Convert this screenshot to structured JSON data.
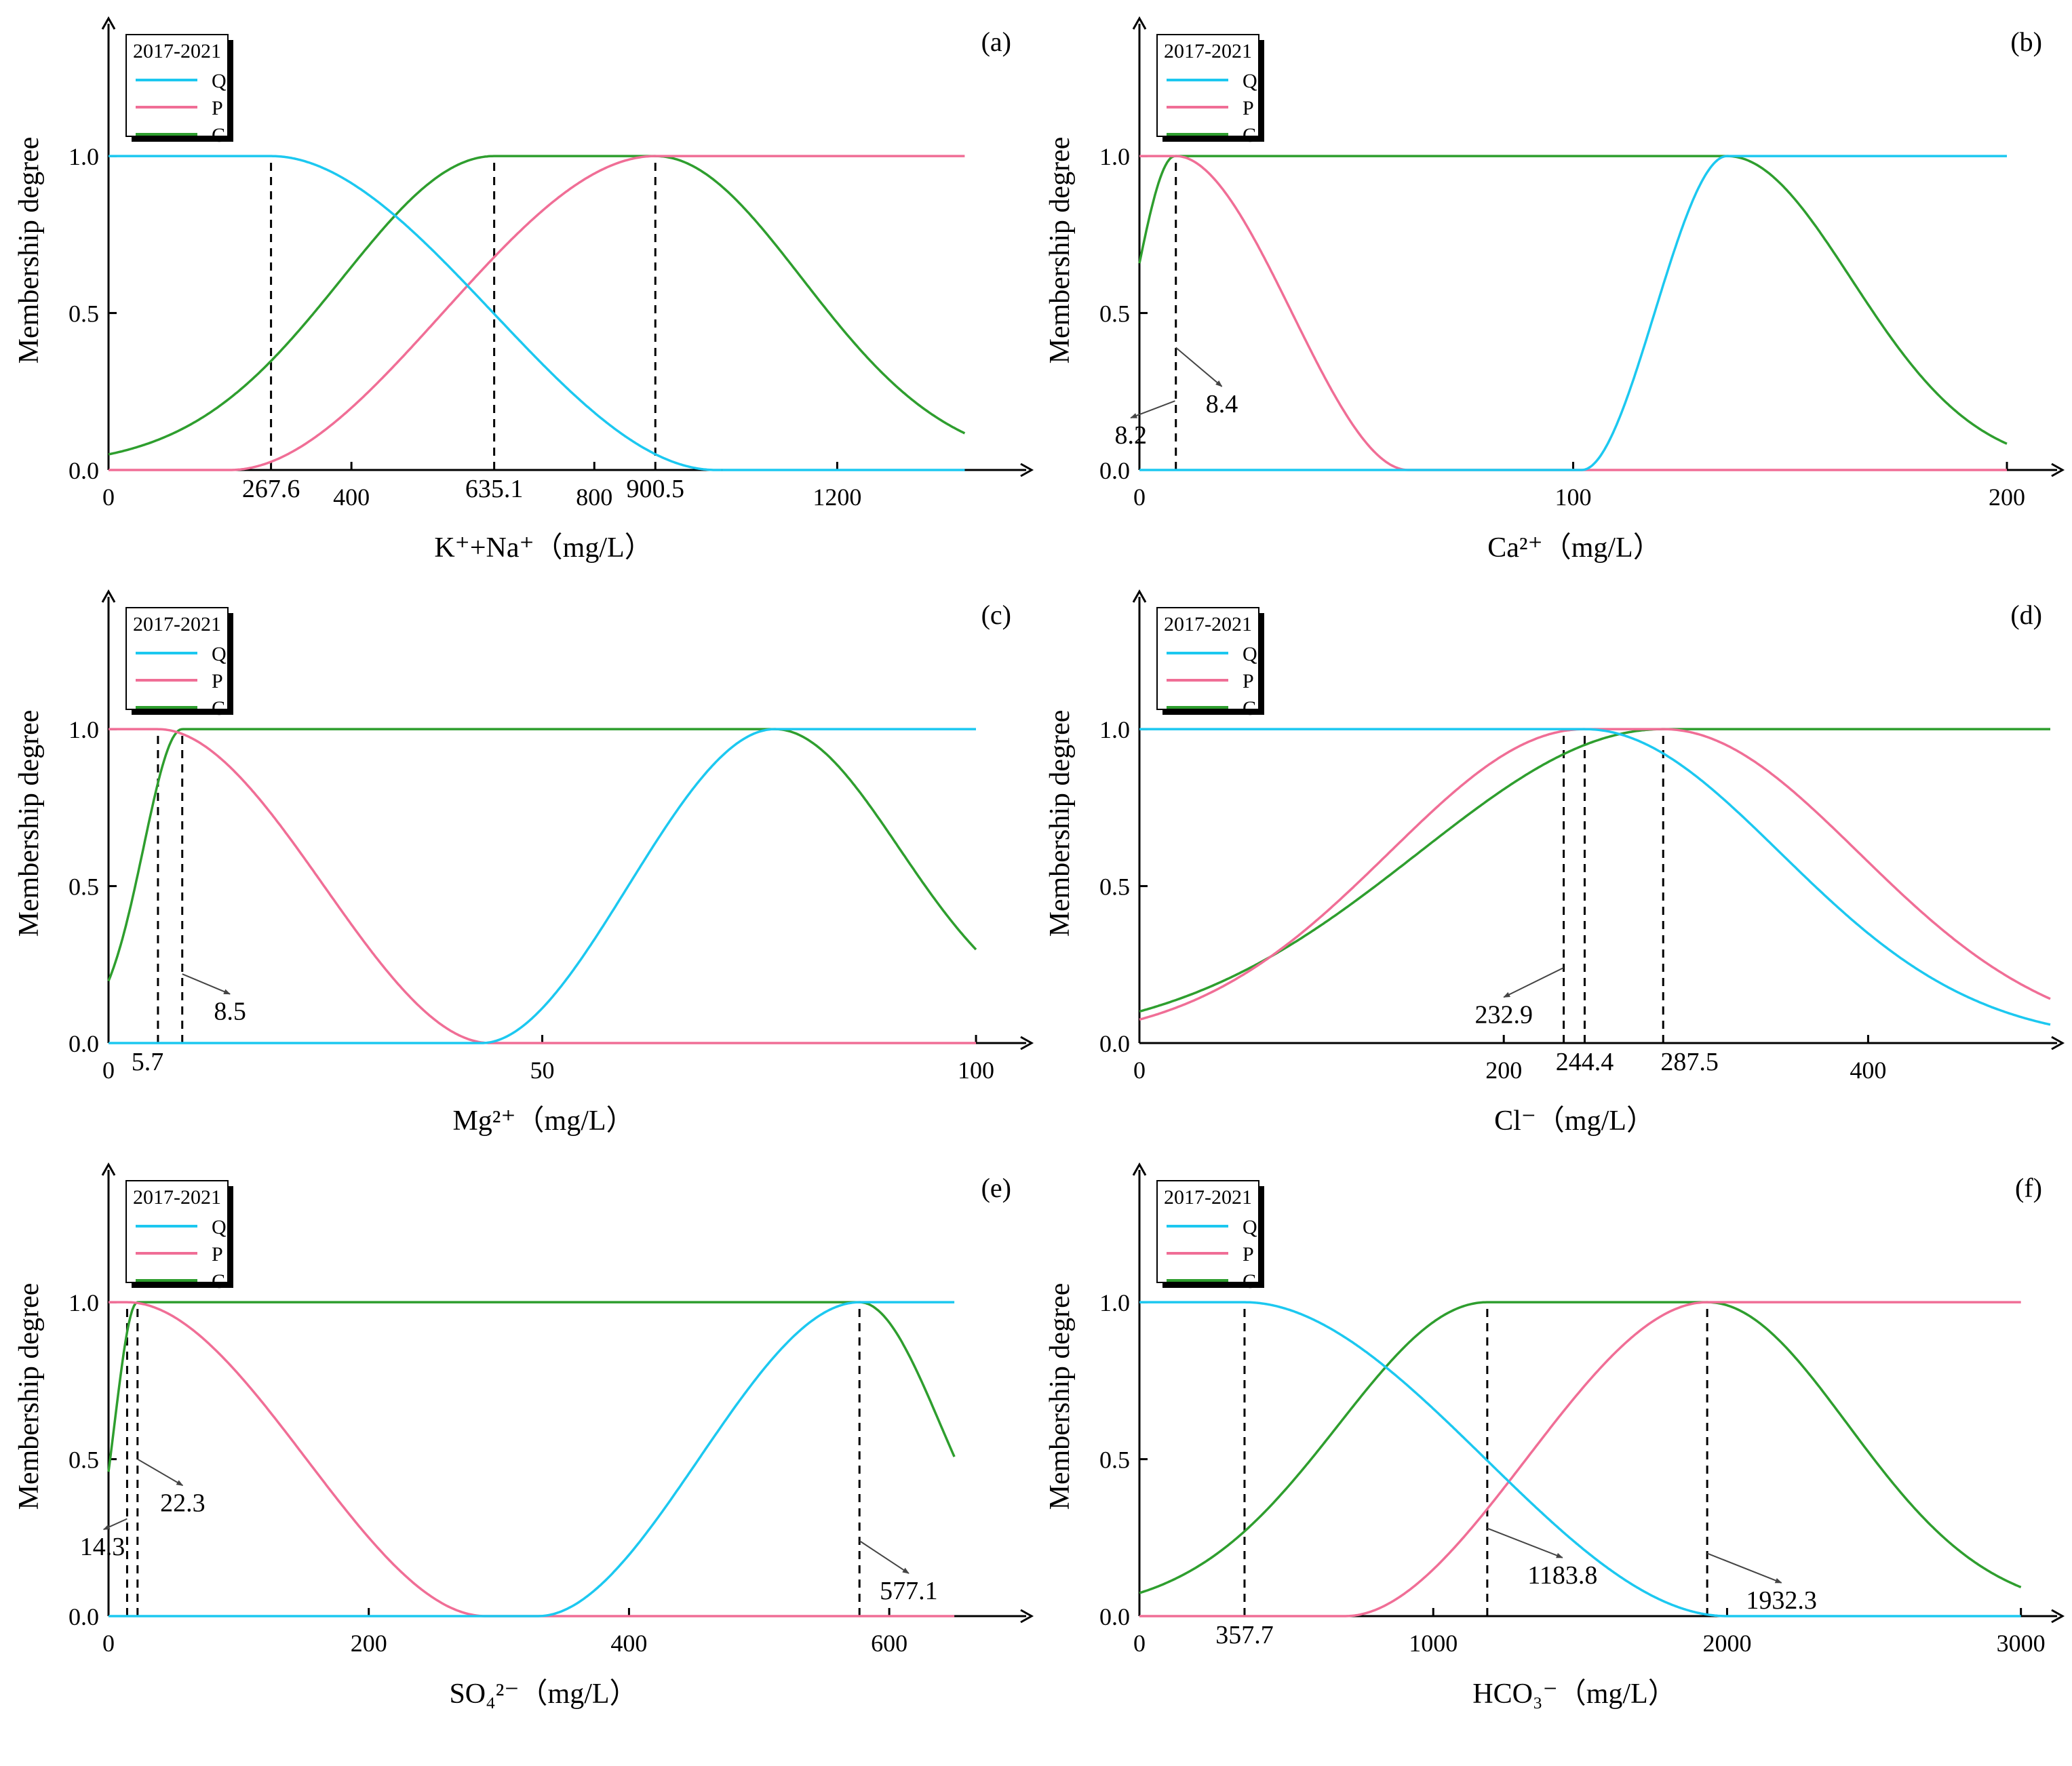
{
  "figure": {
    "legend_title": "2017-2021",
    "series_names": [
      "Q",
      "P",
      "C"
    ],
    "colors": {
      "Q": "#1CC8F0",
      "P": "#F06E96",
      "C": "#2E9E2E"
    },
    "y_label": "Membership degree",
    "y_ticks": [
      0,
      0.5,
      1
    ],
    "y_tick_labels": [
      "0.0",
      "0.5",
      "1.0"
    ]
  },
  "chart_data": [
    {
      "panel": "(a)",
      "type": "line",
      "xlabel": "K⁺+Na⁺（mg/L）",
      "xlim": [
        0,
        1500
      ],
      "ylim": [
        0,
        1.4
      ],
      "xticks": [
        0,
        400,
        800,
        1200
      ],
      "xtick_labels": [
        "0",
        "400",
        "800",
        "1200"
      ],
      "xmax_data": 1410,
      "series": [
        {
          "name": "Q",
          "kind": "zdec",
          "a": 267.6,
          "b": 1000,
          "xmax": 1010
        },
        {
          "name": "P",
          "kind": "zinc",
          "a": 200,
          "b": 900.5,
          "xmax": 1410
        },
        {
          "name": "C",
          "kind": "plateau",
          "a": 635.1,
          "b": 900.5,
          "sl": 560,
          "sr": 540,
          "lvl": 0.01,
          "xmax": 1410
        }
      ],
      "refs": [
        267.6,
        635.1,
        900.5
      ],
      "value_labels": [
        {
          "text": "267.6",
          "x": 267.6,
          "y": -0.06,
          "ax": "middle"
        },
        {
          "text": "635.1",
          "x": 635.1,
          "y": -0.06,
          "ax": "middle"
        },
        {
          "text": "900.5",
          "x": 900.5,
          "y": -0.06,
          "ax": "middle"
        }
      ]
    },
    {
      "panel": "(b)",
      "type": "line",
      "xlabel": "Ca²⁺（mg/L）",
      "xlim": [
        0,
        210
      ],
      "ylim": [
        0,
        1.4
      ],
      "xticks": [
        0,
        100,
        200
      ],
      "xtick_labels": [
        "0",
        "100",
        "200"
      ],
      "xmax_data": 200,
      "series": [
        {
          "name": "Q",
          "kind": "zinc",
          "a": 102,
          "b": 135.5,
          "xmax": 200
        },
        {
          "name": "P",
          "kind": "zdec",
          "a": 8.4,
          "b": 62,
          "xmax": 200
        },
        {
          "name": "C",
          "kind": "plateau",
          "a": 8.2,
          "b": 135.5,
          "sl": 20,
          "sr": 64,
          "lvl": 0.005,
          "xmax": 200
        }
      ],
      "refs": [
        8.4
      ],
      "value_labels": [
        {
          "text": "8.4",
          "x": 19,
          "y": 0.21,
          "ax": "middle",
          "arrow": [
            8.4,
            0.39
          ]
        },
        {
          "text": "8.2",
          "x": -2,
          "y": 0.11,
          "ax": "middle",
          "arrow": [
            8.2,
            0.22
          ]
        }
      ]
    },
    {
      "panel": "(c)",
      "type": "line",
      "xlabel": "Mg²⁺（mg/L）",
      "xlim": [
        0,
        105
      ],
      "ylim": [
        0,
        1.4
      ],
      "xticks": [
        0,
        50,
        100
      ],
      "xtick_labels": [
        "0",
        "50",
        "100"
      ],
      "xmax_data": 100,
      "series": [
        {
          "name": "Q",
          "kind": "zinc",
          "a": 43,
          "b": 76.8,
          "xmax": 100
        },
        {
          "name": "P",
          "kind": "zdec",
          "a": 5.7,
          "b": 44,
          "xmax": 100
        },
        {
          "name": "C",
          "kind": "plateau",
          "a": 8.5,
          "b": 76.8,
          "sl": 10,
          "sr": 32,
          "lvl": 0.04,
          "xmax": 100
        }
      ],
      "refs": [
        5.7,
        8.5
      ],
      "value_labels": [
        {
          "text": "8.5",
          "x": 14,
          "y": 0.1,
          "ax": "middle",
          "arrow": [
            8.5,
            0.22
          ]
        },
        {
          "text": "5.7",
          "x": 4.5,
          "y": -0.06,
          "ax": "middle"
        }
      ]
    },
    {
      "panel": "(d)",
      "type": "line",
      "xlabel": "Cl⁻（mg/L）",
      "xlim": [
        0,
        500
      ],
      "ylim": [
        0,
        1.4
      ],
      "xticks": [
        0,
        200,
        400
      ],
      "xtick_labels": [
        "0",
        "200",
        "400"
      ],
      "xmax_data": 500,
      "series": [
        {
          "name": "Q",
          "kind": "plateau",
          "a": -1,
          "b": 244.4,
          "sl": 1,
          "sr": 240,
          "lvl": 0.0,
          "xmax": 500
        },
        {
          "name": "P",
          "kind": "plateau",
          "a": 244.4,
          "b": 287.5,
          "sl": 240,
          "sr": 240,
          "lvl": 0.0,
          "xmax": 500
        },
        {
          "name": "C",
          "kind": "plateau",
          "a": 287.5,
          "b": 600,
          "sl": 300,
          "sr": 1,
          "lvl": 0.0,
          "xmax": 500
        }
      ],
      "refs": [
        232.9,
        244.4,
        287.5
      ],
      "value_labels": [
        {
          "text": "232.9",
          "x": 200,
          "y": 0.09,
          "ax": "middle",
          "arrow": [
            232.9,
            0.24
          ]
        },
        {
          "text": "244.4",
          "x": 244.4,
          "y": -0.06,
          "ax": "middle"
        },
        {
          "text": "287.5",
          "x": 302,
          "y": -0.06,
          "ax": "middle"
        }
      ]
    },
    {
      "panel": "(e)",
      "type": "line",
      "xlabel": "SO₄²⁻（mg/L）",
      "xlim": [
        0,
        700
      ],
      "ylim": [
        0,
        1.4
      ],
      "xticks": [
        0,
        200,
        400,
        600
      ],
      "xtick_labels": [
        "0",
        "200",
        "400",
        "600"
      ],
      "xmax_data": 650,
      "series": [
        {
          "name": "Q",
          "kind": "zinc",
          "a": 330,
          "b": 577.1,
          "xmax": 650
        },
        {
          "name": "P",
          "kind": "zdec",
          "a": 14.3,
          "b": 290,
          "xmax": 650
        },
        {
          "name": "C",
          "kind": "plateau",
          "a": 22.3,
          "b": 577.1,
          "sl": 40,
          "sr": 140,
          "lvl": 0.0,
          "xmax": 650
        }
      ],
      "refs": [
        14.3,
        22.3,
        577.1
      ],
      "value_labels": [
        {
          "text": "22.3",
          "x": 57,
          "y": 0.36,
          "ax": "middle",
          "arrow": [
            22.3,
            0.5
          ]
        },
        {
          "text": "14.3",
          "x": -22,
          "y": 0.22,
          "ax": "start",
          "arrow": [
            14.3,
            0.31
          ]
        },
        {
          "text": "577.1",
          "x": 615,
          "y": 0.08,
          "ax": "middle",
          "arrow": [
            577.1,
            0.24
          ]
        }
      ]
    },
    {
      "panel": "(f)",
      "type": "line",
      "xlabel": "HCO₃⁻（mg/L）",
      "xlim": [
        0,
        3100
      ],
      "ylim": [
        0,
        1.4
      ],
      "xticks": [
        0,
        1000,
        2000,
        3000
      ],
      "xtick_labels": [
        "0",
        "1000",
        "2000",
        "3000"
      ],
      "xmax_data": 3000,
      "series": [
        {
          "name": "Q",
          "kind": "zdec",
          "a": 357.7,
          "b": 2000,
          "xmax": 2000
        },
        {
          "name": "P",
          "kind": "zinc",
          "a": 700,
          "b": 1932.3,
          "xmax": 3000
        },
        {
          "name": "C",
          "kind": "plateau",
          "a": 1183.8,
          "b": 1932.3,
          "sl": 1130,
          "sr": 1070,
          "lvl": 0.01,
          "xmax": 3000
        }
      ],
      "refs": [
        357.7,
        1183.8,
        1932.3
      ],
      "value_labels": [
        {
          "text": "357.7",
          "x": 357.7,
          "y": -0.06,
          "ax": "middle"
        },
        {
          "text": "1183.8",
          "x": 1440,
          "y": 0.13,
          "ax": "middle",
          "arrow": [
            1183.8,
            0.28
          ]
        },
        {
          "text": "1932.3",
          "x": 2185,
          "y": 0.05,
          "ax": "middle",
          "arrow": [
            1932.3,
            0.2
          ]
        }
      ]
    }
  ]
}
